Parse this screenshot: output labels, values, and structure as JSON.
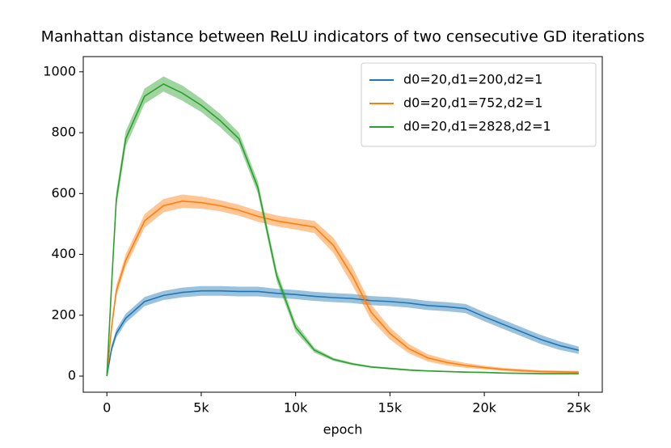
{
  "chart_data": {
    "type": "line",
    "title": "Manhattan distance between ReLU indicators of two censecutive GD iterations",
    "xlabel": "epoch",
    "x": [
      0,
      250,
      500,
      1000,
      2000,
      3000,
      4000,
      5000,
      6000,
      7000,
      8000,
      9000,
      10000,
      11000,
      12000,
      13000,
      14000,
      15000,
      16000,
      17000,
      18000,
      19000,
      20000,
      21000,
      22000,
      23000,
      24000,
      25000
    ],
    "series": [
      {
        "name": "d0=20,d1=200,d2=1",
        "color": "#1f77b4",
        "values": [
          0,
          90,
          140,
          190,
          245,
          265,
          275,
          280,
          280,
          278,
          278,
          272,
          268,
          262,
          258,
          255,
          248,
          245,
          240,
          232,
          228,
          222,
          195,
          170,
          145,
          120,
          100,
          85
        ],
        "errors": [
          0,
          12,
          14,
          15,
          15,
          15,
          16,
          16,
          16,
          16,
          16,
          15,
          15,
          15,
          15,
          15,
          15,
          15,
          15,
          15,
          15,
          15,
          15,
          15,
          15,
          15,
          14,
          12
        ]
      },
      {
        "name": "d0=20,d1=752,d2=1",
        "color": "#ff7f0e",
        "values": [
          0,
          160,
          280,
          380,
          510,
          560,
          575,
          570,
          560,
          545,
          525,
          510,
          500,
          490,
          430,
          330,
          210,
          140,
          90,
          60,
          45,
          35,
          28,
          22,
          18,
          15,
          14,
          13
        ],
        "errors": [
          0,
          15,
          18,
          20,
          22,
          22,
          22,
          20,
          18,
          18,
          18,
          18,
          18,
          20,
          25,
          30,
          25,
          20,
          15,
          12,
          10,
          8,
          6,
          5,
          5,
          4,
          4,
          4
        ]
      },
      {
        "name": "d0=20,d1=2828,d2=1",
        "color": "#2ca02c",
        "values": [
          0,
          300,
          580,
          780,
          920,
          960,
          930,
          890,
          840,
          780,
          620,
          330,
          160,
          85,
          55,
          40,
          30,
          25,
          20,
          17,
          15,
          13,
          12,
          10,
          9,
          8,
          8,
          8
        ],
        "errors": [
          0,
          20,
          25,
          25,
          25,
          25,
          25,
          22,
          22,
          20,
          20,
          18,
          15,
          8,
          5,
          4,
          3,
          3,
          3,
          2,
          2,
          2,
          2,
          2,
          2,
          2,
          2,
          2
        ]
      }
    ],
    "xlim": [
      -1250,
      26250
    ],
    "ylim": [
      -53,
      1050
    ],
    "xticks": [
      0,
      {
        "value": 5000,
        "label": "5k"
      },
      {
        "value": 10000,
        "label": "10k"
      },
      {
        "value": 15000,
        "label": "15k"
      },
      {
        "value": 20000,
        "label": "20k"
      },
      {
        "value": 25000,
        "label": "25k"
      }
    ],
    "yticks": [
      0,
      200,
      400,
      600,
      800,
      1000
    ],
    "legend": "upper right"
  }
}
